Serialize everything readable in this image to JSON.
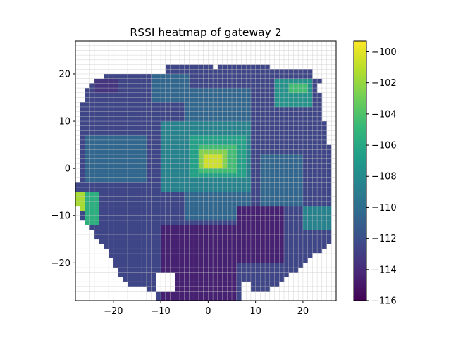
{
  "chart_data": {
    "type": "heatmap",
    "title": "RSSI heatmap of gateway 2",
    "xlabel": "",
    "ylabel": "",
    "xlim": [
      -28,
      27
    ],
    "ylim": [
      -28,
      27
    ],
    "x_ticks": [
      -20,
      -10,
      0,
      10,
      20
    ],
    "y_ticks": [
      -20,
      -10,
      0,
      10,
      20
    ],
    "cell_size": 1,
    "grid": true,
    "colormap": "viridis",
    "colorbar": {
      "range": [
        -116,
        -99.3
      ],
      "ticks": [
        -100,
        -102,
        -104,
        -106,
        -108,
        -110,
        -112,
        -114,
        -116
      ]
    },
    "colors": {
      "viridis": [
        "#440154",
        "#482878",
        "#3e4a89",
        "#31688e",
        "#26828e",
        "#1f9e89",
        "#35b779",
        "#6ece58",
        "#b5de2b",
        "#fde725"
      ],
      "empty_cell": "#ffffff",
      "grid": "#c8c8c8"
    },
    "coverage": {
      "bounds_x_by_y": [
        {
          "y": 21,
          "x": [
            -9,
            1
          ]
        },
        {
          "y": 21,
          "x": [
            2,
            13
          ]
        },
        {
          "y": 20,
          "x": [
            -9,
            22
          ]
        },
        {
          "y": 19,
          "x": [
            -22,
            22
          ]
        },
        {
          "y": 18,
          "x": [
            -24,
            24
          ]
        },
        {
          "y": 17,
          "x": [
            -25,
            23
          ]
        },
        {
          "y": 16,
          "x": [
            -26,
            23
          ]
        },
        {
          "y": 15,
          "x": [
            -26,
            24
          ]
        },
        {
          "y": 13,
          "x": [
            -27,
            24
          ]
        },
        {
          "y": 11,
          "x": [
            -27,
            24
          ]
        },
        {
          "y": 10,
          "x": [
            -27,
            24
          ]
        },
        {
          "y": 9,
          "x": [
            -27,
            25
          ]
        },
        {
          "y": 6,
          "x": [
            -27,
            25
          ]
        },
        {
          "y": 3,
          "x": [
            -27,
            26
          ]
        },
        {
          "y": -3,
          "x": [
            -27,
            26
          ]
        },
        {
          "y": -4,
          "x": [
            -28,
            26
          ]
        },
        {
          "y": -8,
          "x": [
            -28,
            26
          ]
        },
        {
          "y": -10,
          "x": [
            -27,
            26
          ]
        },
        {
          "y": -12,
          "x": [
            -27,
            26
          ]
        },
        {
          "y": -13,
          "x": [
            -25,
            26
          ]
        },
        {
          "y": -15,
          "x": [
            -24,
            26
          ]
        },
        {
          "y": -17,
          "x": [
            -22,
            25
          ]
        },
        {
          "y": -19,
          "x": [
            -21,
            22
          ]
        },
        {
          "y": -21,
          "x": [
            -20,
            20
          ]
        },
        {
          "y": -23,
          "x": [
            -19,
            17
          ]
        },
        {
          "y": -25,
          "x": [
            -17,
            15
          ]
        },
        {
          "y": -26,
          "x": [
            -13,
            13
          ]
        },
        {
          "y": -27,
          "x": [
            -11,
            8
          ]
        },
        {
          "y": -28,
          "x": [
            -11,
            7
          ]
        }
      ],
      "holes": [
        {
          "x": [
            -11,
            -7
          ],
          "y": [
            -26,
            -22
          ]
        },
        {
          "x": [
            7,
            9
          ],
          "y": [
            -28,
            -24
          ]
        },
        {
          "x": [
            -28,
            -26
          ],
          "y": [
            -14,
            -11
          ]
        }
      ]
    },
    "base_value": -112.5,
    "value_regions": [
      {
        "x": [
          -5,
          9
        ],
        "y": [
          -11,
          17
        ],
        "value": -110.5
      },
      {
        "x": [
          -26,
          -13
        ],
        "y": [
          -3,
          7
        ],
        "value": -110.5
      },
      {
        "x": [
          11,
          20
        ],
        "y": [
          -8,
          3
        ],
        "value": -110.5
      },
      {
        "x": [
          -10,
          9
        ],
        "y": [
          -5,
          10
        ],
        "value": -108.5
      },
      {
        "x": [
          -4,
          8
        ],
        "y": [
          -2,
          7
        ],
        "value": -106.5
      },
      {
        "x": [
          -2,
          6
        ],
        "y": [
          -1,
          5
        ],
        "value": -104.5
      },
      {
        "x": [
          -2,
          4
        ],
        "y": [
          0,
          4
        ],
        "value": -102.5
      },
      {
        "x": [
          -1,
          3
        ],
        "y": [
          0,
          3
        ],
        "value": -100.5
      },
      {
        "x": [
          14,
          22
        ],
        "y": [
          13,
          19
        ],
        "value": -107.5
      },
      {
        "x": [
          17,
          21
        ],
        "y": [
          16,
          18
        ],
        "value": -104.5
      },
      {
        "x": [
          -28,
          -26
        ],
        "y": [
          -9,
          -5
        ],
        "value": -101.5
      },
      {
        "x": [
          -26,
          -23
        ],
        "y": [
          -12,
          -5
        ],
        "value": -105.5
      },
      {
        "x": [
          -10,
          6
        ],
        "y": [
          -28,
          -12
        ],
        "value": -114.5
      },
      {
        "x": [
          6,
          16
        ],
        "y": [
          -20,
          -8
        ],
        "value": -114.5
      },
      {
        "x": [
          -12,
          -4
        ],
        "y": [
          14,
          20
        ],
        "value": -110.5
      },
      {
        "x": [
          20,
          26
        ],
        "y": [
          -13,
          -8
        ],
        "value": -108.5
      },
      {
        "x": [
          -24,
          -19
        ],
        "y": [
          16,
          19
        ],
        "value": -113.5
      }
    ]
  }
}
